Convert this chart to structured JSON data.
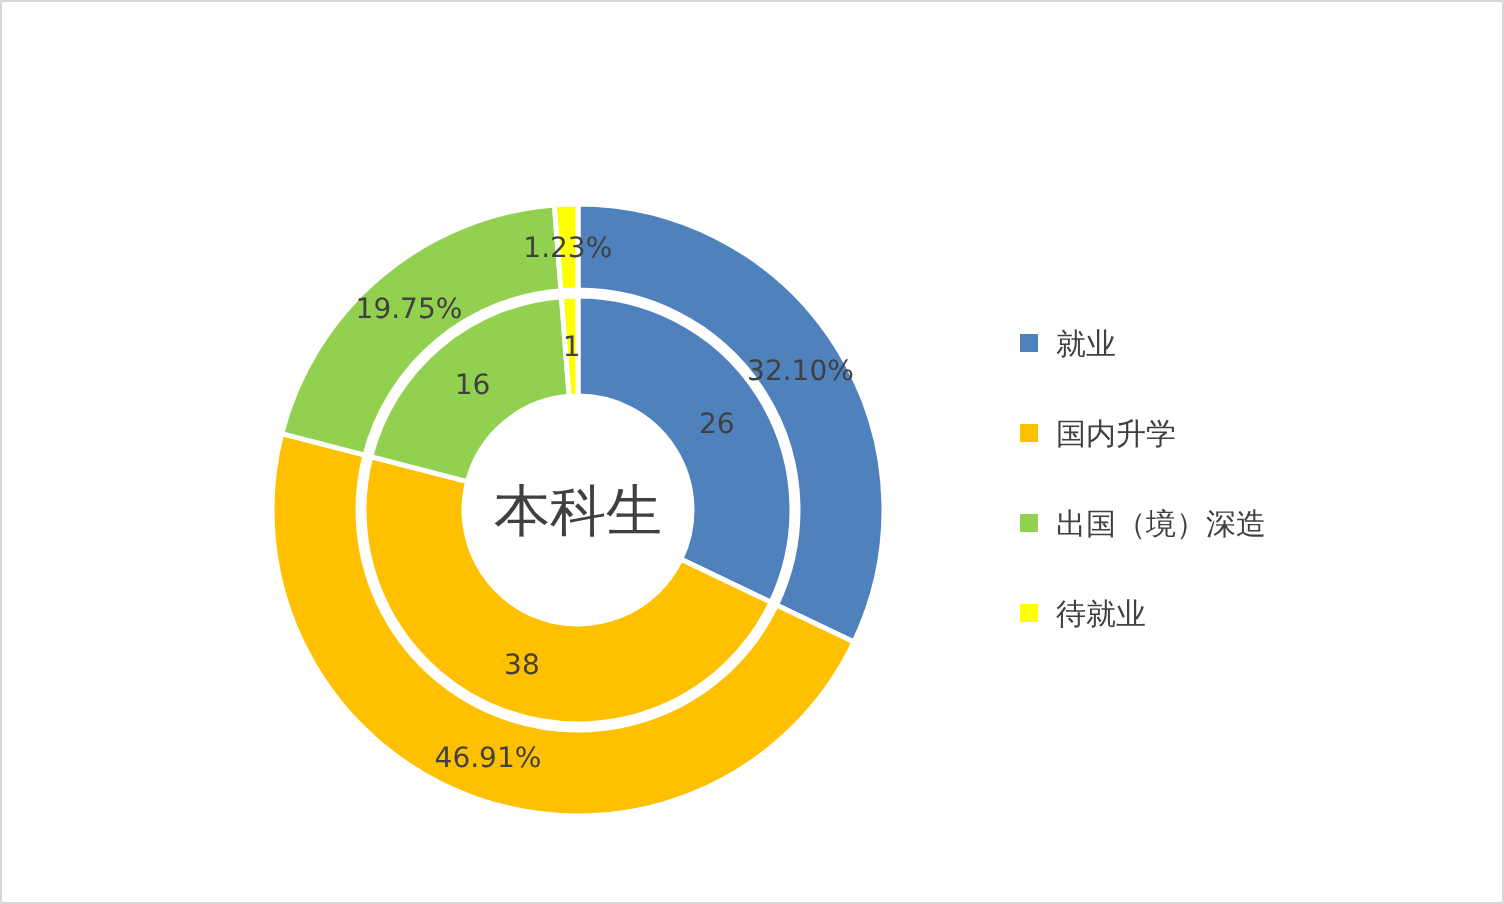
{
  "chart_data": {
    "type": "donut",
    "title": "本科生",
    "categories": [
      "就业",
      "国内升学",
      "出国（境）深造",
      "待就业"
    ],
    "colors": [
      "#4f81bd",
      "#ffc000",
      "#92d050",
      "#ffff00"
    ],
    "legend": "right",
    "series": [
      {
        "values": [
          26,
          38,
          16,
          1
        ],
        "data_labels": true
      },
      {
        "values": [
          32.1,
          46.91,
          19.75,
          1.23
        ],
        "value_labels": [
          "32.10%",
          "46.91%",
          "19.75%",
          "1.23%"
        ]
      }
    ]
  }
}
